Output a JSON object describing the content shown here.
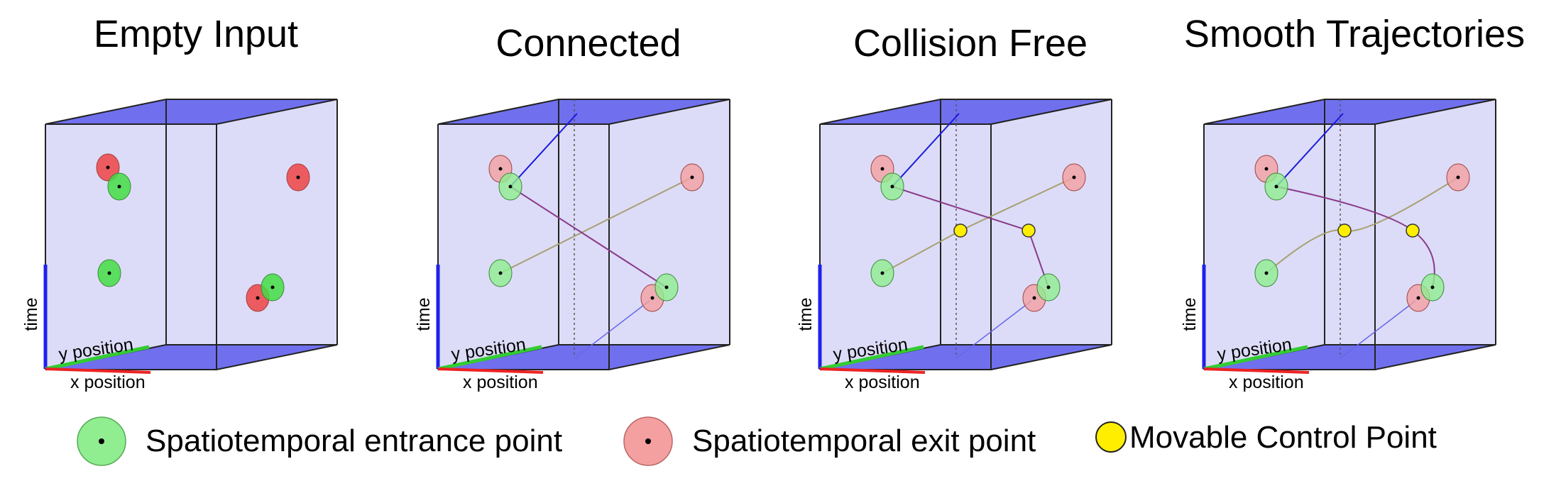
{
  "panels": [
    {
      "title": "Empty Input",
      "connections": "none",
      "control_points": 0
    },
    {
      "title": "Connected",
      "connections": "straight",
      "control_points": 0
    },
    {
      "title": "Collision Free",
      "connections": "via-control-points",
      "control_points": 2
    },
    {
      "title": "Smooth Trajectories",
      "connections": "smooth-curves",
      "control_points": 2
    }
  ],
  "axes": {
    "time": "time",
    "y": "y position",
    "x": "x position"
  },
  "legend": {
    "entrance": "Spatiotemporal entrance point",
    "exit": "Spatiotemporal exit point",
    "control": "Movable Control Point"
  },
  "colors": {
    "entrance_fill": "#90ee90",
    "exit_fill": "#f4a0a0",
    "entrance_fill_empty": "#44dd44",
    "exit_fill_empty": "#ee4444",
    "control_fill": "#ffee00",
    "box_face": "#dcdcf8",
    "box_cap": "#7070ee",
    "time_axis": "#2020ee",
    "y_axis": "#33cc33",
    "x_axis": "#ee2222"
  }
}
